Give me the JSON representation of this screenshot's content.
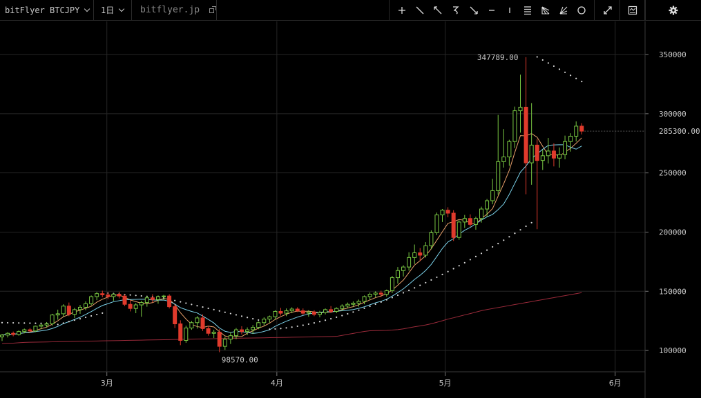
{
  "toolbar": {
    "symbol": "bitFlyer BTCJPY",
    "interval": "1日",
    "site": "bitflyer.jp",
    "tools": [
      "crosshair-icon",
      "trend-line-icon",
      "arrow-line-icon",
      "curve-icon",
      "arrow-down-right-icon",
      "horizontal-line-icon",
      "vertical-line-icon",
      "parallel-lines-icon",
      "fan-icon",
      "gann-fan-icon",
      "circle-icon"
    ],
    "right_tools": [
      "fullscreen-icon",
      "indicator-icon",
      "settings-icon"
    ]
  },
  "chart_data": {
    "type": "candlestick",
    "y_axis_ticks": [
      100000,
      150000,
      200000,
      250000,
      300000,
      350000
    ],
    "x_axis_ticks": [
      "3月",
      "4月",
      "5月",
      "6月"
    ],
    "ylim": [
      82000,
      378000
    ],
    "current_price": "285300.00",
    "high_label": "347789.00",
    "low_label": "98570.00",
    "colors": {
      "up": "#7ac943",
      "down": "#e03a2c",
      "ma_fast": "#e8a06a",
      "ma_mid": "#7ad0e8",
      "ma_slow": "#9a2a3a",
      "sar": "#d8d8d8",
      "grid": "#262626"
    },
    "candles": [
      [
        111500,
        114000,
        108000,
        113000
      ],
      [
        113000,
        115500,
        111000,
        114500
      ],
      [
        114500,
        116000,
        112000,
        113500
      ],
      [
        113500,
        117000,
        112500,
        116000
      ],
      [
        116000,
        118500,
        114500,
        117500
      ],
      [
        117500,
        119000,
        115000,
        116500
      ],
      [
        116500,
        121000,
        115500,
        120500
      ],
      [
        120500,
        122500,
        118000,
        121500
      ],
      [
        121500,
        124000,
        119500,
        122500
      ],
      [
        122500,
        131000,
        121000,
        130000
      ],
      [
        130000,
        134500,
        126000,
        131000
      ],
      [
        131000,
        139000,
        128500,
        137500
      ],
      [
        137500,
        140500,
        129000,
        130500
      ],
      [
        130500,
        136000,
        127500,
        134500
      ],
      [
        134500,
        138500,
        131000,
        136500
      ],
      [
        136500,
        141500,
        134000,
        139500
      ],
      [
        139500,
        146500,
        138000,
        145500
      ],
      [
        145500,
        149500,
        142500,
        148000
      ],
      [
        148000,
        150500,
        145000,
        147000
      ],
      [
        147000,
        149000,
        143500,
        145500
      ],
      [
        145500,
        148500,
        142000,
        147500
      ],
      [
        147500,
        149500,
        144000,
        146000
      ],
      [
        146000,
        147500,
        137500,
        139000
      ],
      [
        139000,
        142500,
        133000,
        135500
      ],
      [
        135500,
        140000,
        131500,
        138500
      ],
      [
        138500,
        142000,
        128500,
        140500
      ],
      [
        140500,
        146000,
        137000,
        144500
      ],
      [
        144500,
        147500,
        140500,
        143000
      ],
      [
        143000,
        146500,
        139500,
        145500
      ],
      [
        145500,
        147000,
        142500,
        146000
      ],
      [
        146000,
        147500,
        135500,
        137000
      ],
      [
        137000,
        139000,
        119000,
        122500
      ],
      [
        122500,
        125500,
        104500,
        108500
      ],
      [
        108500,
        121000,
        106500,
        119000
      ],
      [
        119000,
        125000,
        117500,
        123500
      ],
      [
        123500,
        129000,
        118500,
        127500
      ],
      [
        127500,
        130500,
        116500,
        118500
      ],
      [
        118500,
        121000,
        112500,
        114500
      ],
      [
        114500,
        117500,
        110500,
        115500
      ],
      [
        115500,
        118000,
        98570,
        103500
      ],
      [
        103500,
        111500,
        100500,
        109500
      ],
      [
        109500,
        115500,
        105500,
        112500
      ],
      [
        112500,
        119000,
        109500,
        117500
      ],
      [
        117500,
        120500,
        113500,
        116000
      ],
      [
        116000,
        119500,
        113000,
        117500
      ],
      [
        117500,
        121500,
        114000,
        119500
      ],
      [
        119500,
        124500,
        118000,
        123500
      ],
      [
        123500,
        128000,
        121000,
        126500
      ],
      [
        126500,
        129500,
        123500,
        128500
      ],
      [
        128500,
        134000,
        126000,
        133000
      ],
      [
        133000,
        136000,
        129500,
        131500
      ],
      [
        131500,
        135500,
        129000,
        133500
      ],
      [
        133500,
        136500,
        131500,
        135000
      ],
      [
        135000,
        136500,
        132500,
        133500
      ],
      [
        133500,
        135500,
        130000,
        131500
      ],
      [
        131500,
        134000,
        128500,
        132500
      ],
      [
        132500,
        134000,
        129000,
        130500
      ],
      [
        130500,
        133500,
        128000,
        132000
      ],
      [
        132000,
        135500,
        130500,
        134500
      ],
      [
        134500,
        137500,
        131500,
        133000
      ],
      [
        133000,
        136500,
        131500,
        135500
      ],
      [
        135500,
        139000,
        133500,
        137500
      ],
      [
        137500,
        140500,
        135500,
        139000
      ],
      [
        139000,
        141500,
        137000,
        140000
      ],
      [
        140000,
        143000,
        137000,
        141500
      ],
      [
        141500,
        146500,
        139000,
        145500
      ],
      [
        145500,
        149000,
        142500,
        147500
      ],
      [
        147500,
        150000,
        145000,
        148500
      ],
      [
        148500,
        150500,
        145000,
        147500
      ],
      [
        147500,
        151500,
        145500,
        150500
      ],
      [
        150500,
        163000,
        148500,
        161500
      ],
      [
        161500,
        170500,
        156500,
        167500
      ],
      [
        167500,
        172000,
        162500,
        170500
      ],
      [
        170500,
        183000,
        167500,
        178500
      ],
      [
        178500,
        189500,
        173000,
        182500
      ],
      [
        182500,
        186500,
        175500,
        180500
      ],
      [
        180500,
        191500,
        178500,
        188500
      ],
      [
        188500,
        201500,
        185500,
        199500
      ],
      [
        199500,
        216500,
        197500,
        214500
      ],
      [
        214500,
        219500,
        208500,
        218500
      ],
      [
        218500,
        221000,
        212500,
        216000
      ],
      [
        216000,
        218500,
        192500,
        195500
      ],
      [
        195500,
        210000,
        193500,
        208500
      ],
      [
        208500,
        214500,
        203500,
        211500
      ],
      [
        211500,
        215000,
        204500,
        206500
      ],
      [
        206500,
        213000,
        202000,
        211500
      ],
      [
        211500,
        221500,
        208000,
        219500
      ],
      [
        219500,
        228000,
        213000,
        226500
      ],
      [
        226500,
        245000,
        223500,
        235000
      ],
      [
        235000,
        299000,
        231500,
        259500
      ],
      [
        259500,
        287000,
        254500,
        263500
      ],
      [
        263500,
        278000,
        256000,
        276500
      ],
      [
        276500,
        306000,
        271000,
        302500
      ],
      [
        302500,
        333000,
        284000,
        305500
      ],
      [
        305500,
        347789,
        232000,
        258500
      ],
      [
        258500,
        309000,
        240000,
        273500
      ],
      [
        273500,
        278500,
        202500,
        260500
      ],
      [
        260500,
        269500,
        252500,
        264500
      ],
      [
        264500,
        279500,
        258000,
        268500
      ],
      [
        268500,
        275000,
        255500,
        262500
      ],
      [
        262500,
        271500,
        254500,
        265500
      ],
      [
        265500,
        281500,
        261500,
        276500
      ],
      [
        276500,
        283500,
        268000,
        281000
      ],
      [
        281000,
        293500,
        276500,
        289500
      ],
      [
        289500,
        292000,
        282500,
        285300
      ]
    ]
  }
}
